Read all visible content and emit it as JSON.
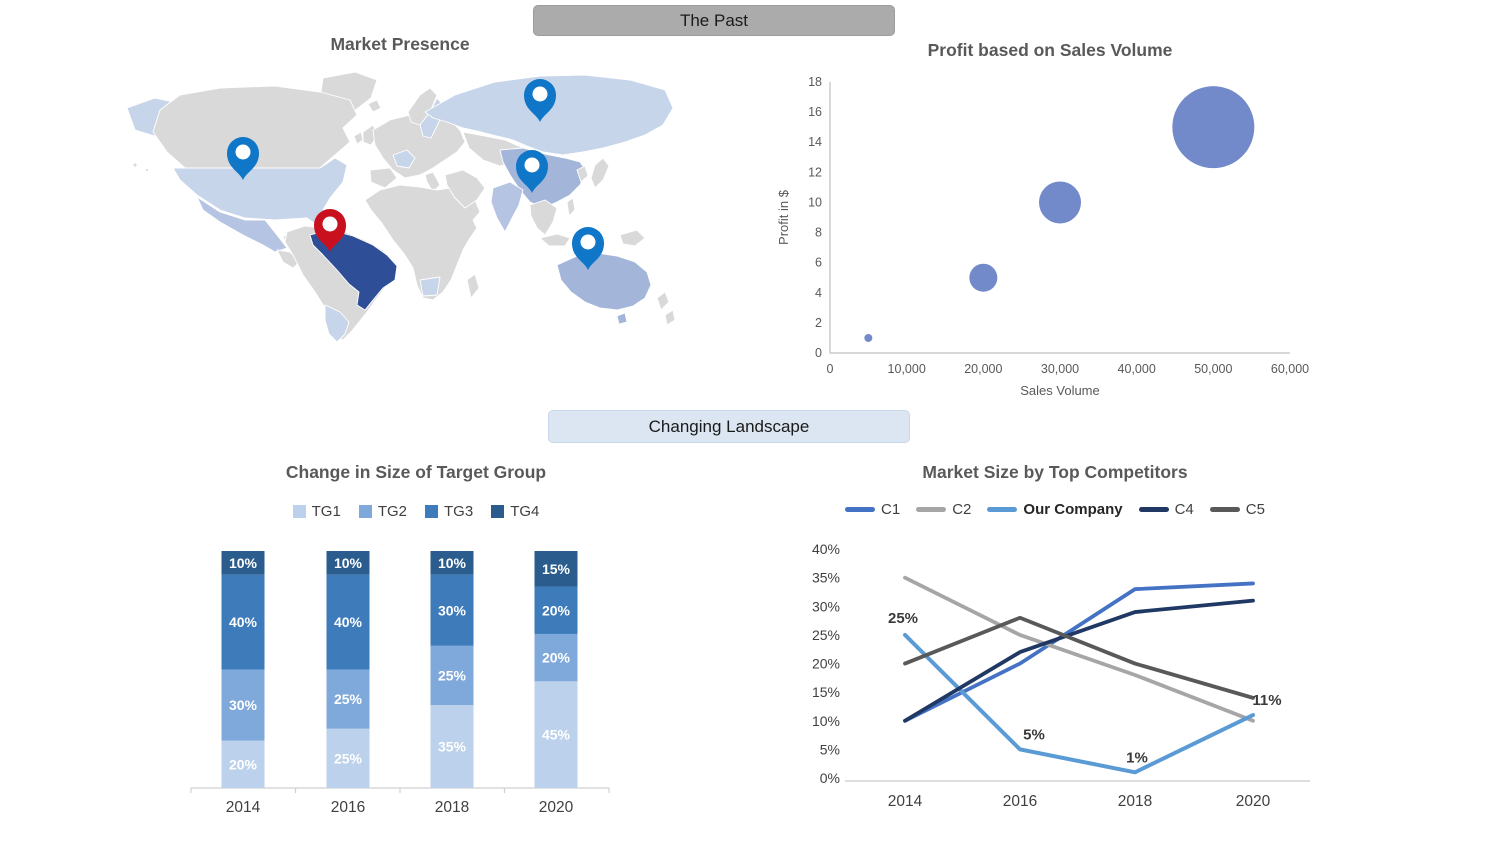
{
  "banners": {
    "the_past": "The Past",
    "changing_landscape": "Changing Landscape"
  },
  "map": {
    "title": "Market Presence",
    "pins": [
      {
        "region": "united-states",
        "color": "blue"
      },
      {
        "region": "brazil",
        "color": "red"
      },
      {
        "region": "russia",
        "color": "blue"
      },
      {
        "region": "china",
        "color": "blue"
      },
      {
        "region": "australia",
        "color": "blue"
      }
    ],
    "highlighted_regions": [
      {
        "name": "United States",
        "shade": "light-blue"
      },
      {
        "name": "Alaska",
        "shade": "light-blue"
      },
      {
        "name": "Russia",
        "shade": "light-blue"
      },
      {
        "name": "Argentina",
        "shade": "light-blue"
      },
      {
        "name": "France",
        "shade": "light-blue"
      },
      {
        "name": "Sweden",
        "shade": "light-blue"
      },
      {
        "name": "Southern Africa",
        "shade": "light-blue"
      },
      {
        "name": "Mexico",
        "shade": "medium-light-blue"
      },
      {
        "name": "India",
        "shade": "medium-light-blue"
      },
      {
        "name": "China",
        "shade": "medium-blue"
      },
      {
        "name": "Australia",
        "shade": "medium-blue"
      },
      {
        "name": "Brazil",
        "shade": "dark-blue"
      }
    ],
    "colors": {
      "land": "#d9d9d9",
      "border": "#ffffff",
      "light_blue": "#c7d5ea",
      "medium_light_blue": "#b4c4e2",
      "medium_blue": "#a3b6d9",
      "dark_blue": "#2e4f97",
      "pin_blue": "#0f76c8",
      "pin_red": "#c8101e"
    }
  },
  "chart_data": [
    {
      "type": "scatter",
      "subtype": "bubble",
      "title": "Profit based on Sales Volume",
      "xlabel": "Sales Volume",
      "ylabel": "Profit in $",
      "xlim": [
        0,
        60000
      ],
      "ylim": [
        0,
        18
      ],
      "xticks": {
        "values": [
          0,
          10000,
          20000,
          30000,
          40000,
          50000,
          60000
        ],
        "labels": [
          "0",
          "10,000",
          "20,000",
          "30,000",
          "40,000",
          "50,000",
          "60,000"
        ]
      },
      "yticks": [
        0,
        2,
        4,
        6,
        8,
        10,
        12,
        14,
        16,
        18
      ],
      "points": [
        {
          "x": 5000,
          "y": 1,
          "r": 4
        },
        {
          "x": 20000,
          "y": 5,
          "r": 14
        },
        {
          "x": 30000,
          "y": 10,
          "r": 21
        },
        {
          "x": 50000,
          "y": 15,
          "r": 41
        }
      ],
      "bubble_color": "#7289ca",
      "axis_color": "#bfbfbf",
      "grid": false,
      "legend": "none"
    },
    {
      "type": "bar",
      "stacked": true,
      "title": "Change in Size of Target Group",
      "categories": [
        "2014",
        "2016",
        "2018",
        "2020"
      ],
      "series": [
        {
          "name": "TG1",
          "color": "#bcd1eb",
          "values": [
            20,
            25,
            35,
            45
          ]
        },
        {
          "name": "TG2",
          "color": "#80a9db",
          "values": [
            30,
            25,
            25,
            20
          ]
        },
        {
          "name": "TG3",
          "color": "#3d7bba",
          "values": [
            40,
            40,
            30,
            20
          ]
        },
        {
          "name": "TG4",
          "color": "#2b5c8e",
          "values": [
            10,
            10,
            10,
            15
          ]
        }
      ],
      "value_suffix": "%",
      "ylim": [
        0,
        100
      ],
      "grid": false,
      "legend_position": "top"
    },
    {
      "type": "line",
      "title": "Market Size by Top Competitors",
      "categories": [
        "2014",
        "2016",
        "2018",
        "2020"
      ],
      "ylim": [
        0,
        40
      ],
      "yticks": [
        0,
        5,
        10,
        15,
        20,
        25,
        30,
        35,
        40
      ],
      "ytick_suffix": "%",
      "series": [
        {
          "name": "C1",
          "color": "#4472c4",
          "values": [
            10,
            20,
            33,
            34
          ]
        },
        {
          "name": "C2",
          "color": "#a6a6a6",
          "values": [
            35,
            25,
            18,
            10
          ]
        },
        {
          "name": "Our Company",
          "color": "#5b9bd5",
          "values": [
            25,
            5,
            1,
            11
          ],
          "emphasis": true,
          "data_labels": [
            "25%",
            "5%",
            "1%",
            "11%"
          ]
        },
        {
          "name": "C4",
          "color": "#203864",
          "values": [
            10,
            22,
            29,
            31
          ]
        },
        {
          "name": "C5",
          "color": "#595959",
          "values": [
            20,
            28,
            20,
            14
          ]
        }
      ],
      "grid": false,
      "legend_position": "top"
    }
  ]
}
